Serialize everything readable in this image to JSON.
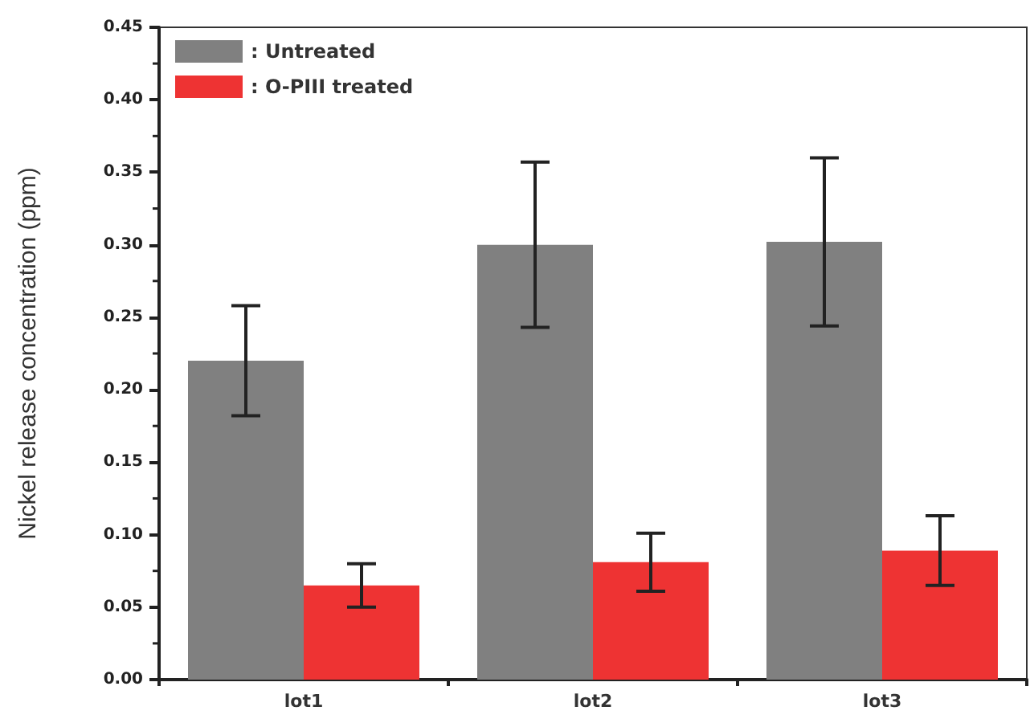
{
  "chart_data": {
    "type": "bar",
    "ylabel": "Nickel release concentration (ppm)",
    "categories": [
      "lot1",
      "lot2",
      "lot3"
    ],
    "series": [
      {
        "name": ": Untreated",
        "color": "#808080",
        "values": [
          0.22,
          0.3,
          0.302
        ],
        "errors": [
          0.038,
          0.057,
          0.058
        ]
      },
      {
        "name": ": O-PIII treated",
        "color": "#ee3333",
        "values": [
          0.065,
          0.081,
          0.089
        ],
        "errors": [
          0.015,
          0.02,
          0.024
        ]
      }
    ],
    "ylim": [
      0,
      0.45
    ],
    "yticks": [
      {
        "value": 0,
        "label": "0.00"
      },
      {
        "value": 0.05,
        "label": "0.05"
      },
      {
        "value": 0.1,
        "label": "0.10"
      },
      {
        "value": 0.15,
        "label": "0.15"
      },
      {
        "value": 0.2,
        "label": "0.20"
      },
      {
        "value": 0.25,
        "label": "0.25"
      },
      {
        "value": 0.3,
        "label": "0.30"
      },
      {
        "value": 0.35,
        "label": "0.35"
      },
      {
        "value": 0.4,
        "label": "0.40"
      },
      {
        "value": 0.45,
        "label": "0.45"
      }
    ],
    "grid": false,
    "legend": "top left"
  }
}
